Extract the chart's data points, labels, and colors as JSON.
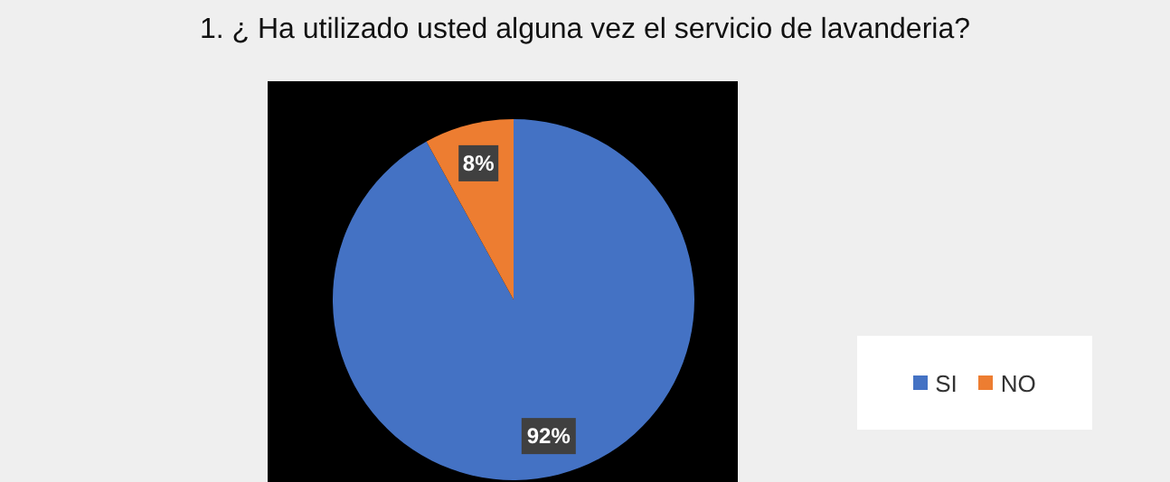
{
  "chart_data": {
    "type": "pie",
    "title": "1.  ¿ Ha utilizado usted alguna vez el servicio de lavanderia?",
    "categories": [
      "SI",
      "NO"
    ],
    "values": [
      92,
      8
    ],
    "colors": [
      "#4472c4",
      "#ed7d31"
    ],
    "value_labels": [
      "92%",
      "8%"
    ],
    "legend": "right"
  }
}
